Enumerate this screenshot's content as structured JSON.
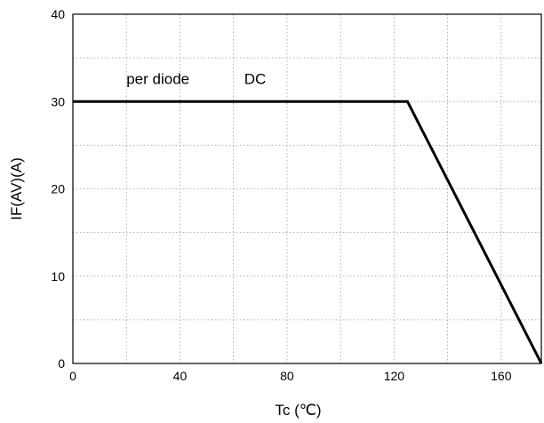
{
  "chart_data": {
    "type": "line",
    "title": "",
    "xlabel": "Tc (℃)",
    "ylabel": "IF(AV)(A)",
    "xlim": [
      0,
      175
    ],
    "ylim": [
      0,
      40
    ],
    "x_ticks": [
      0,
      40,
      80,
      120,
      160
    ],
    "y_ticks": [
      0,
      10,
      20,
      30,
      40
    ],
    "x_tick_labels": [
      "0",
      "40",
      "80",
      "120",
      "160"
    ],
    "y_tick_labels": [
      "0",
      "10",
      "20",
      "30",
      "40"
    ],
    "x_minor_grid": [
      20,
      60,
      100,
      140
    ],
    "y_minor_grid": [
      5,
      15,
      25,
      35
    ],
    "grid": true,
    "series": [
      {
        "x": [
          0,
          125,
          175
        ],
        "y": [
          30,
          30,
          0
        ],
        "color": "#000000"
      }
    ],
    "annotations": [
      {
        "text": "per diode",
        "x": 20,
        "y": 32
      },
      {
        "text": "DC",
        "x": 64,
        "y": 32
      }
    ]
  }
}
